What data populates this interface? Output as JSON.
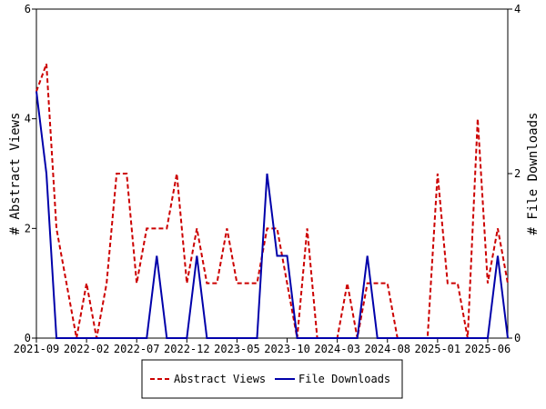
{
  "chart_data": {
    "type": "line",
    "x": [
      "2021-09",
      "2021-10",
      "2021-11",
      "2021-12",
      "2022-01",
      "2022-02",
      "2022-03",
      "2022-04",
      "2022-05",
      "2022-06",
      "2022-07",
      "2022-08",
      "2022-09",
      "2022-10",
      "2022-11",
      "2022-12",
      "2023-01",
      "2023-02",
      "2023-03",
      "2023-04",
      "2023-05",
      "2023-06",
      "2023-07",
      "2023-08",
      "2023-09",
      "2023-10",
      "2023-11",
      "2023-12",
      "2024-01",
      "2024-02",
      "2024-03",
      "2024-04",
      "2024-05",
      "2024-06",
      "2024-07",
      "2024-08",
      "2024-09",
      "2024-10",
      "2024-11",
      "2024-12",
      "2025-01",
      "2025-02",
      "2025-03",
      "2025-04",
      "2025-05",
      "2025-06",
      "2025-07",
      "2025-08"
    ],
    "x_ticks": [
      "2021-09",
      "2022-02",
      "2022-07",
      "2022-12",
      "2023-05",
      "2023-10",
      "2024-03",
      "2024-08",
      "2025-01",
      "2025-06"
    ],
    "y_ticks_left": [
      0,
      2,
      4,
      6
    ],
    "y_ticks_right": [
      0,
      2,
      4
    ],
    "y_left_label": "# Abstract Views",
    "y_right_label": "# File Downloads",
    "ylim_left": [
      0,
      6
    ],
    "ylim_right": [
      0,
      4
    ],
    "grid": false,
    "legend_placement": "bottom",
    "series": [
      {
        "name": "Abstract Views",
        "axis": "left",
        "color": "#cc0000",
        "style": "dashed",
        "values": [
          4.5,
          5,
          2,
          1,
          0,
          1,
          0,
          1,
          3,
          3,
          1,
          2,
          2,
          2,
          3,
          1,
          2,
          1,
          1,
          2,
          1,
          1,
          1,
          2,
          2,
          1,
          0,
          2,
          0,
          0,
          0,
          1,
          0,
          1,
          1,
          1,
          0,
          0,
          0,
          0,
          3,
          1,
          1,
          0,
          4,
          1,
          2,
          1
        ]
      },
      {
        "name": "File Downloads",
        "axis": "right",
        "color": "#0000aa",
        "style": "solid",
        "values": [
          3,
          2,
          0,
          0,
          0,
          0,
          0,
          0,
          0,
          0,
          0,
          0,
          1,
          0,
          0,
          0,
          1,
          0,
          0,
          0,
          0,
          0,
          0,
          2,
          1,
          1,
          0,
          0,
          0,
          0,
          0,
          0,
          0,
          1,
          0,
          0,
          0,
          0,
          0,
          0,
          0,
          0,
          0,
          0,
          0,
          0,
          1,
          0
        ]
      }
    ]
  }
}
